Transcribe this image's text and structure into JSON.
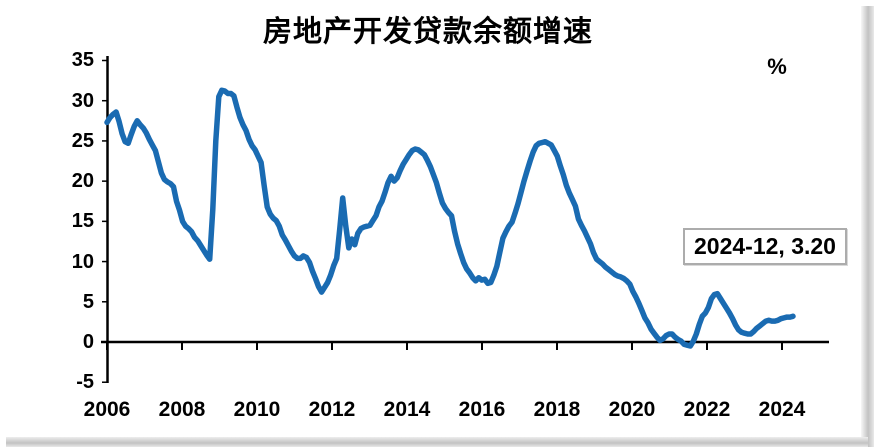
{
  "colors": {
    "line": "#1a6bb2",
    "axis": "#000000",
    "text": "#000000",
    "annotation_border": "#acacac",
    "background": "#ffffff"
  },
  "chart_data": {
    "type": "line",
    "title": "房地产开发贷款余额增速",
    "unit_label": "%",
    "annotation": "2024-12, 3.20",
    "last_point": {
      "date": "2024-12",
      "value": 3.2
    },
    "x_start": "2006-01",
    "x_end": "2024-12",
    "frequency": "monthly",
    "grid": false,
    "legend": "none",
    "ylim": [
      -5,
      35
    ],
    "yticks": [
      35,
      30,
      25,
      20,
      15,
      10,
      5,
      0,
      -5
    ],
    "xticks": [
      "2006",
      "2008",
      "2010",
      "2012",
      "2014",
      "2016",
      "2018",
      "2020",
      "2022",
      "2024"
    ],
    "series": [
      {
        "name": "房地产开发贷款余额增速(%)",
        "values": [
          27.3,
          27.9,
          28.3,
          28.6,
          27.4,
          25.9,
          24.9,
          24.7,
          25.8,
          26.8,
          27.5,
          27.0,
          26.6,
          26.0,
          25.2,
          24.5,
          23.8,
          22.4,
          21.0,
          20.2,
          19.9,
          19.7,
          19.3,
          17.5,
          16.4,
          15.0,
          14.4,
          14.1,
          13.7,
          13.0,
          12.6,
          12.0,
          11.4,
          10.8,
          10.3,
          16.5,
          25.0,
          30.5,
          31.3,
          31.2,
          30.9,
          30.9,
          30.6,
          29.2,
          27.9,
          27.0,
          26.3,
          25.2,
          24.4,
          23.9,
          23.1,
          22.3,
          19.5,
          16.8,
          15.9,
          15.4,
          15.1,
          14.4,
          13.3,
          12.7,
          12.0,
          11.3,
          10.7,
          10.4,
          10.4,
          10.7,
          10.5,
          9.9,
          8.8,
          7.9,
          6.9,
          6.2,
          6.8,
          7.4,
          8.3,
          9.5,
          10.4,
          14.0,
          17.9,
          14.5,
          11.7,
          12.8,
          12.1,
          13.5,
          14.1,
          14.3,
          14.4,
          14.5,
          15.1,
          15.7,
          16.8,
          17.5,
          18.6,
          19.8,
          20.6,
          20.0,
          20.4,
          21.3,
          22.1,
          22.7,
          23.3,
          23.8,
          24.0,
          23.9,
          23.6,
          23.3,
          22.6,
          21.8,
          20.8,
          19.8,
          18.5,
          17.3,
          16.6,
          16.1,
          15.7,
          13.8,
          12.2,
          11.0,
          9.9,
          9.1,
          8.6,
          8.0,
          7.6,
          8.0,
          7.7,
          7.8,
          7.3,
          7.4,
          8.3,
          9.4,
          11.2,
          12.9,
          13.7,
          14.4,
          14.9,
          16.0,
          17.2,
          18.6,
          20.0,
          21.3,
          22.5,
          23.6,
          24.4,
          24.7,
          24.8,
          24.9,
          24.7,
          24.5,
          23.8,
          23.1,
          21.9,
          20.8,
          19.5,
          18.5,
          17.7,
          16.9,
          15.3,
          14.5,
          13.8,
          13.0,
          12.2,
          11.1,
          10.3,
          10.0,
          9.7,
          9.3,
          9.0,
          8.7,
          8.4,
          8.2,
          8.1,
          7.9,
          7.6,
          7.2,
          6.3,
          5.6,
          4.8,
          3.9,
          3.0,
          2.4,
          1.6,
          1.1,
          0.6,
          0.2,
          0.4,
          0.8,
          1.0,
          1.0,
          0.6,
          0.3,
          0.1,
          -0.3,
          -0.4,
          -0.5,
          0.1,
          1.0,
          2.2,
          3.2,
          3.6,
          4.3,
          5.4,
          5.9,
          6.0,
          5.4,
          4.8,
          4.2,
          3.6,
          2.9,
          2.1,
          1.5,
          1.2,
          1.1,
          1.0,
          1.0,
          1.3,
          1.7,
          2.0,
          2.3,
          2.6,
          2.7,
          2.6,
          2.6,
          2.7,
          2.9,
          3.0,
          3.1,
          3.1,
          3.2
        ]
      }
    ]
  }
}
